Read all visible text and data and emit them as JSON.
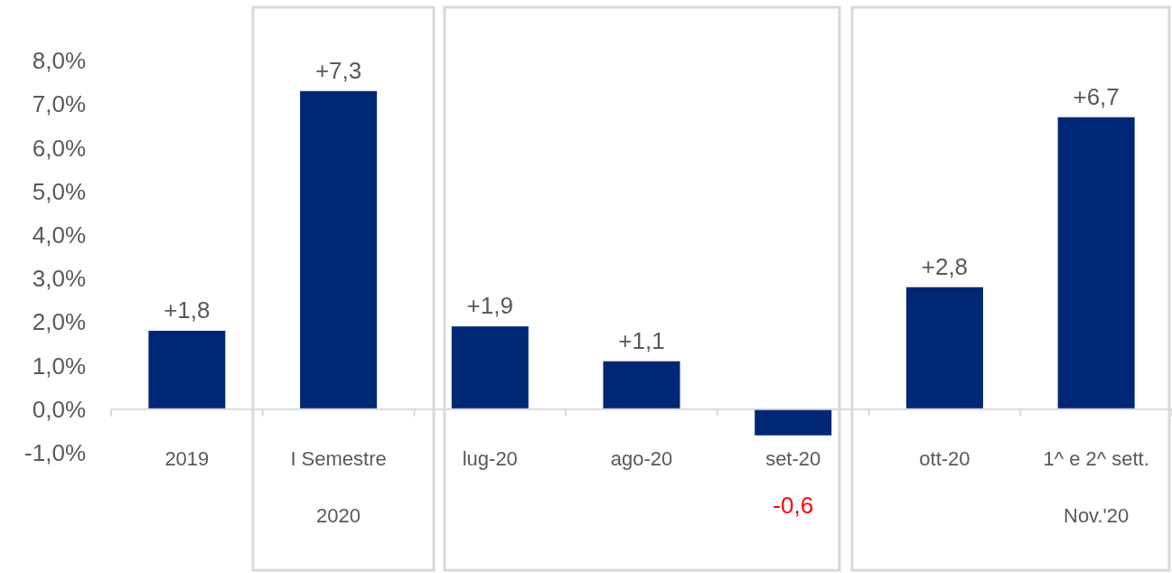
{
  "chart_data": {
    "type": "bar",
    "categories": [
      "2019",
      "I Semestre\n2020",
      "lug-20",
      "ago-20",
      "set-20",
      "ott-20",
      "1^ e 2^ sett.\nNov.'20"
    ],
    "values": [
      1.8,
      7.3,
      1.9,
      1.1,
      -0.6,
      2.8,
      6.7
    ],
    "value_labels": [
      "+1,8",
      "+7,3",
      "+1,9",
      "+1,1",
      "-0,6",
      "+2,8",
      "+6,7"
    ],
    "color": "#002776",
    "ylim": [
      -1,
      8
    ],
    "yticks": [
      {
        "value": -1,
        "label": "-1,0%"
      },
      {
        "value": 0,
        "label": "0,0%"
      },
      {
        "value": 1,
        "label": "1,0%"
      },
      {
        "value": 2,
        "label": "2,0%"
      },
      {
        "value": 3,
        "label": "3,0%"
      },
      {
        "value": 4,
        "label": "4,0%"
      },
      {
        "value": 5,
        "label": "5,0%"
      },
      {
        "value": 6,
        "label": "6,0%"
      },
      {
        "value": 7,
        "label": "7,0%"
      },
      {
        "value": 8,
        "label": "8,0%"
      }
    ],
    "grid": false
  }
}
